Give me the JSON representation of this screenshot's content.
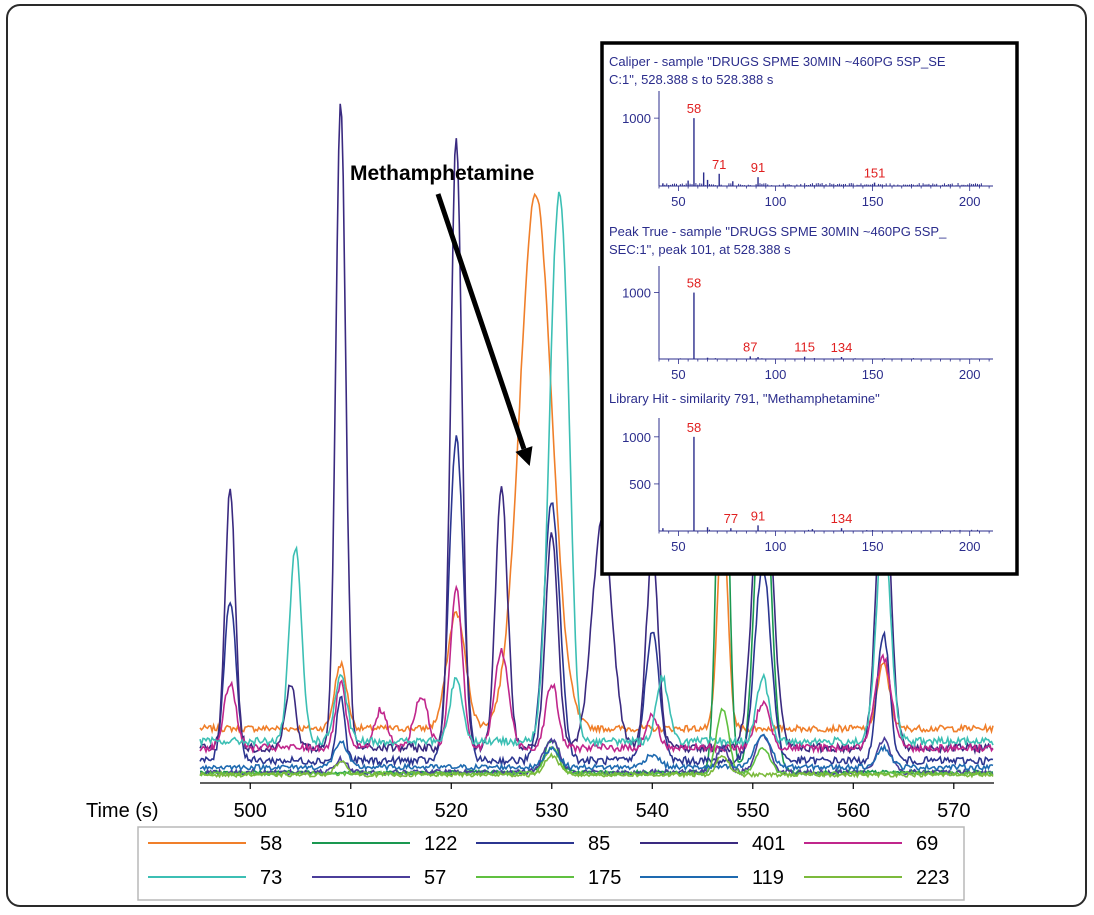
{
  "chart_data": {
    "main": {
      "type": "line",
      "xlabel": "Time (s)",
      "xlim": [
        495,
        574
      ],
      "x_ticks": [
        500,
        510,
        520,
        530,
        540,
        550,
        560,
        570
      ],
      "annotation": {
        "text": "Methamphetamine",
        "target_x": 528.4
      },
      "legend": {
        "placement": "bottom",
        "entries": [
          "58",
          "122",
          "85",
          "401",
          "69",
          "73",
          "57",
          "175",
          "119",
          "223"
        ]
      },
      "series": [
        {
          "name": "58",
          "color": "#f07f2a",
          "baseline": 0.08,
          "noise": 0.005,
          "peaks": [
            [
              509,
              0.1,
              0.6
            ],
            [
              520.5,
              0.18,
              0.9
            ],
            [
              528.4,
              0.83,
              1.6
            ],
            [
              547,
              0.33,
              0.5
            ],
            [
              563,
              0.1,
              0.6
            ]
          ]
        },
        {
          "name": "122",
          "color": "#1a9850",
          "baseline": 0.012,
          "noise": 0.003,
          "peaks": [
            [
              530,
              0.05,
              0.7
            ],
            [
              547,
              0.7,
              0.55
            ],
            [
              551,
              0.5,
              0.8
            ]
          ]
        },
        {
          "name": "85",
          "color": "#2b3590",
          "baseline": 0.03,
          "noise": 0.006,
          "peaks": [
            [
              498,
              0.25,
              0.6
            ],
            [
              509,
              0.1,
              0.4
            ],
            [
              520.5,
              0.5,
              0.7
            ],
            [
              530,
              0.4,
              0.8
            ],
            [
              540,
              0.2,
              0.7
            ],
            [
              551,
              0.3,
              0.8
            ],
            [
              563,
              0.2,
              0.6
            ]
          ]
        },
        {
          "name": "401",
          "color": "#3a2a80",
          "baseline": 0.05,
          "noise": 0.007,
          "peaks": [
            [
              498,
              0.4,
              0.5
            ],
            [
              504,
              0.1,
              0.5
            ],
            [
              509,
              1.0,
              0.5
            ],
            [
              520.5,
              0.95,
              0.55
            ],
            [
              525,
              0.4,
              0.6
            ],
            [
              530,
              0.33,
              0.6
            ],
            [
              535,
              0.35,
              1.0
            ],
            [
              540,
              0.3,
              0.6
            ],
            [
              551,
              0.5,
              0.9
            ],
            [
              563,
              0.45,
              0.7
            ]
          ]
        },
        {
          "name": "69",
          "color": "#c0268c",
          "baseline": 0.05,
          "noise": 0.006,
          "peaks": [
            [
              498,
              0.1,
              0.6
            ],
            [
              509,
              0.1,
              0.5
            ],
            [
              513,
              0.06,
              0.6
            ],
            [
              517,
              0.08,
              0.7
            ],
            [
              520.5,
              0.25,
              0.6
            ],
            [
              525,
              0.15,
              0.7
            ],
            [
              530,
              0.1,
              0.6
            ],
            [
              540,
              0.05,
              0.6
            ],
            [
              551,
              0.07,
              0.7
            ],
            [
              563,
              0.14,
              0.8
            ]
          ]
        },
        {
          "name": "73",
          "color": "#3cbfb4",
          "baseline": 0.06,
          "noise": 0.006,
          "peaks": [
            [
              504.5,
              0.3,
              0.6
            ],
            [
              509,
              0.1,
              0.6
            ],
            [
              520.5,
              0.1,
              0.6
            ],
            [
              530.5,
              0.75,
              0.8
            ],
            [
              531.5,
              0.3,
              0.6
            ],
            [
              541,
              0.1,
              0.6
            ],
            [
              551,
              0.1,
              0.6
            ],
            [
              563,
              0.33,
              0.7
            ]
          ]
        },
        {
          "name": "57",
          "color": "#4b3d9a",
          "baseline": 0.012,
          "noise": 0.004,
          "peaks": [
            [
              509,
              0.02,
              0.6
            ],
            [
              530,
              0.05,
              0.8
            ],
            [
              547,
              0.04,
              0.6
            ],
            [
              551,
              0.06,
              0.7
            ],
            [
              563,
              0.05,
              0.7
            ]
          ]
        },
        {
          "name": "175",
          "color": "#60c040",
          "baseline": 0.01,
          "noise": 0.003,
          "peaks": [
            [
              530,
              0.04,
              0.7
            ],
            [
              547,
              0.1,
              0.6
            ],
            [
              551,
              0.04,
              0.7
            ]
          ]
        },
        {
          "name": "119",
          "color": "#1e6ab0",
          "baseline": 0.02,
          "noise": 0.004,
          "peaks": [
            [
              509,
              0.04,
              0.6
            ],
            [
              530,
              0.03,
              0.7
            ],
            [
              540,
              0.02,
              0.7
            ],
            [
              551,
              0.05,
              0.8
            ],
            [
              563,
              0.03,
              0.7
            ]
          ]
        },
        {
          "name": "223",
          "color": "#7cba3c",
          "baseline": 0.008,
          "noise": 0.003,
          "peaks": [
            [
              509,
              0.02,
              0.6
            ],
            [
              530,
              0.03,
              0.7
            ],
            [
              547,
              0.03,
              0.6
            ]
          ]
        }
      ]
    },
    "inset": {
      "border_color": "#000000",
      "spectra": [
        {
          "type": "bar",
          "title_lines": [
            "Caliper - sample \"DRUGS SPME 30MIN ~460PG 5SP_SE",
            "C:1\", 528.388 s to 528.388 s"
          ],
          "xlim": [
            40,
            212
          ],
          "x_ticks": [
            50,
            100,
            150,
            200
          ],
          "ylim": [
            0,
            1400
          ],
          "y_ticks": [
            1000
          ],
          "peaks": [
            [
              58,
              1000
            ],
            [
              71,
              180
            ],
            [
              91,
              130
            ],
            [
              151,
              50
            ],
            [
              63,
              200
            ],
            [
              65,
              90
            ],
            [
              78,
              70
            ],
            [
              42,
              40
            ],
            [
              55,
              80
            ]
          ],
          "peak_labels": [
            [
              58,
              "58"
            ],
            [
              71,
              "71"
            ],
            [
              91,
              "91"
            ],
            [
              151,
              "151"
            ]
          ]
        },
        {
          "type": "bar",
          "title_lines": [
            "Peak True - sample \"DRUGS SPME 30MIN ~460PG 5SP_",
            "SEC:1\", peak 101, at 528.388 s"
          ],
          "xlim": [
            40,
            212
          ],
          "x_ticks": [
            50,
            100,
            150,
            200
          ],
          "ylim": [
            0,
            1400
          ],
          "y_ticks": [
            1000
          ],
          "peaks": [
            [
              58,
              1000
            ],
            [
              87,
              40
            ],
            [
              115,
              35
            ],
            [
              134,
              30
            ],
            [
              65,
              20
            ],
            [
              91,
              30
            ]
          ],
          "peak_labels": [
            [
              58,
              "58"
            ],
            [
              87,
              "87"
            ],
            [
              115,
              "115"
            ],
            [
              134,
              "134"
            ]
          ]
        },
        {
          "type": "bar",
          "title_lines": [
            "Library Hit - similarity 791, \"Methamphetamine\""
          ],
          "xlim": [
            40,
            212
          ],
          "x_ticks": [
            50,
            100,
            150,
            200
          ],
          "ylim": [
            0,
            1200
          ],
          "y_ticks": [
            500,
            1000
          ],
          "peaks": [
            [
              58,
              1000
            ],
            [
              77,
              30
            ],
            [
              91,
              60
            ],
            [
              134,
              30
            ],
            [
              65,
              40
            ],
            [
              42,
              30
            ],
            [
              119,
              20
            ]
          ],
          "peak_labels": [
            [
              58,
              "58"
            ],
            [
              77,
              "77"
            ],
            [
              91,
              "91"
            ],
            [
              134,
              "134"
            ]
          ]
        }
      ]
    }
  }
}
